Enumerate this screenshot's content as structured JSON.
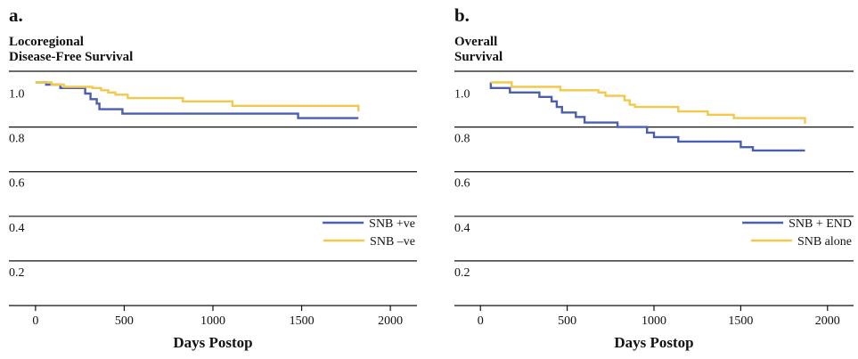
{
  "chart_data": [
    {
      "type": "line",
      "letter": "a.",
      "title_lines": [
        "Locoregional",
        "Disease-Free Survival"
      ],
      "xlabel": "Days Postop",
      "xlim": [
        -150,
        2150
      ],
      "ylim": [
        0,
        1.05
      ],
      "xticks": [
        0,
        500,
        1000,
        1500,
        2000
      ],
      "xtick_labels": [
        "0",
        "500",
        "1000",
        "1500",
        "2000"
      ],
      "yticks": [
        0.2,
        0.4,
        0.6,
        0.8,
        1.0
      ],
      "ytick_labels": [
        "0.2",
        "0.4",
        "0.6",
        "0.8",
        "1.0"
      ],
      "legend_position": "center-right",
      "series": [
        {
          "name": "SNB +ve",
          "color": "#4a5fb0",
          "step": true,
          "points": [
            [
              0,
              1.0
            ],
            [
              60,
              1.0
            ],
            [
              60,
              0.99
            ],
            [
              140,
              0.99
            ],
            [
              140,
              0.975
            ],
            [
              280,
              0.975
            ],
            [
              280,
              0.95
            ],
            [
              310,
              0.95
            ],
            [
              310,
              0.925
            ],
            [
              345,
              0.925
            ],
            [
              345,
              0.905
            ],
            [
              360,
              0.905
            ],
            [
              360,
              0.88
            ],
            [
              490,
              0.88
            ],
            [
              490,
              0.86
            ],
            [
              1480,
              0.86
            ],
            [
              1480,
              0.84
            ],
            [
              1820,
              0.84
            ]
          ]
        },
        {
          "name": "SNB –ve",
          "color": "#f2c94c",
          "step": true,
          "points": [
            [
              0,
              1.0
            ],
            [
              90,
              1.0
            ],
            [
              90,
              0.99
            ],
            [
              160,
              0.99
            ],
            [
              160,
              0.98
            ],
            [
              320,
              0.98
            ],
            [
              320,
              0.975
            ],
            [
              370,
              0.975
            ],
            [
              370,
              0.965
            ],
            [
              410,
              0.965
            ],
            [
              410,
              0.955
            ],
            [
              450,
              0.955
            ],
            [
              450,
              0.945
            ],
            [
              520,
              0.945
            ],
            [
              520,
              0.93
            ],
            [
              830,
              0.93
            ],
            [
              830,
              0.915
            ],
            [
              1110,
              0.915
            ],
            [
              1110,
              0.895
            ],
            [
              1820,
              0.895
            ],
            [
              1820,
              0.87
            ]
          ]
        }
      ]
    },
    {
      "type": "line",
      "letter": "b.",
      "title_lines": [
        "Overall",
        "Survival"
      ],
      "xlabel": "Days Postop",
      "xlim": [
        -150,
        2150
      ],
      "ylim": [
        0,
        1.05
      ],
      "xticks": [
        0,
        500,
        1000,
        1500,
        2000
      ],
      "xtick_labels": [
        "0",
        "500",
        "1000",
        "1500",
        "2000"
      ],
      "yticks": [
        0.2,
        0.4,
        0.6,
        0.8,
        1.0
      ],
      "ytick_labels": [
        "0.2",
        "0.4",
        "0.6",
        "0.8",
        "1.0"
      ],
      "legend_position": "center-right",
      "series": [
        {
          "name": "SNB + END",
          "color": "#4a5fb0",
          "step": true,
          "points": [
            [
              60,
              1.0
            ],
            [
              60,
              0.975
            ],
            [
              170,
              0.975
            ],
            [
              170,
              0.955
            ],
            [
              340,
              0.955
            ],
            [
              340,
              0.935
            ],
            [
              410,
              0.935
            ],
            [
              410,
              0.915
            ],
            [
              440,
              0.915
            ],
            [
              440,
              0.89
            ],
            [
              470,
              0.89
            ],
            [
              470,
              0.865
            ],
            [
              550,
              0.865
            ],
            [
              550,
              0.845
            ],
            [
              600,
              0.845
            ],
            [
              600,
              0.82
            ],
            [
              790,
              0.82
            ],
            [
              790,
              0.8
            ],
            [
              960,
              0.8
            ],
            [
              960,
              0.775
            ],
            [
              1000,
              0.775
            ],
            [
              1000,
              0.755
            ],
            [
              1140,
              0.755
            ],
            [
              1140,
              0.735
            ],
            [
              1500,
              0.735
            ],
            [
              1500,
              0.71
            ],
            [
              1570,
              0.71
            ],
            [
              1570,
              0.695
            ],
            [
              1870,
              0.695
            ]
          ]
        },
        {
          "name": "SNB alone",
          "color": "#f2c94c",
          "step": true,
          "points": [
            [
              60,
              1.0
            ],
            [
              180,
              1.0
            ],
            [
              180,
              0.98
            ],
            [
              460,
              0.98
            ],
            [
              460,
              0.965
            ],
            [
              680,
              0.965
            ],
            [
              680,
              0.955
            ],
            [
              720,
              0.955
            ],
            [
              720,
              0.94
            ],
            [
              830,
              0.94
            ],
            [
              830,
              0.92
            ],
            [
              860,
              0.92
            ],
            [
              860,
              0.9
            ],
            [
              890,
              0.9
            ],
            [
              890,
              0.89
            ],
            [
              1140,
              0.89
            ],
            [
              1140,
              0.87
            ],
            [
              1310,
              0.87
            ],
            [
              1310,
              0.855
            ],
            [
              1460,
              0.855
            ],
            [
              1460,
              0.84
            ],
            [
              1870,
              0.84
            ],
            [
              1870,
              0.815
            ]
          ]
        }
      ]
    }
  ]
}
